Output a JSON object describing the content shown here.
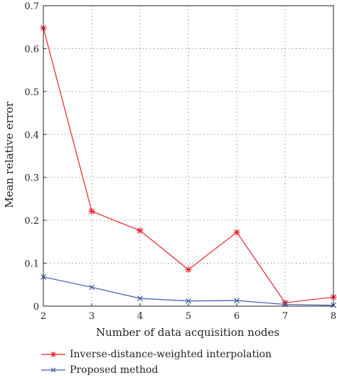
{
  "chart_data": {
    "type": "line",
    "title": "",
    "xlabel": "Number of data acquisition nodes",
    "ylabel": "Mean relative error",
    "x": [
      2,
      3,
      4,
      5,
      6,
      7,
      8
    ],
    "xticks": [
      "2",
      "3",
      "4",
      "5",
      "6",
      "7",
      "8"
    ],
    "yticks": [
      "0",
      "0.1",
      "0.2",
      "0.3",
      "0.4",
      "0.5",
      "0.6",
      "0.7"
    ],
    "xlim": [
      2,
      8
    ],
    "ylim": [
      0,
      0.7
    ],
    "grid": "dotted",
    "legend_position": "bottom",
    "series": [
      {
        "name": "Inverse-distance-weighted interpolation",
        "marker": "asterisk",
        "color": "#e8202a",
        "values": [
          0.648,
          0.221,
          0.176,
          0.085,
          0.172,
          0.008,
          0.021
        ]
      },
      {
        "name": "Proposed method",
        "marker": "x",
        "color": "#3a5aa8",
        "values": [
          0.068,
          0.044,
          0.018,
          0.012,
          0.013,
          0.004,
          0.002
        ]
      }
    ]
  }
}
